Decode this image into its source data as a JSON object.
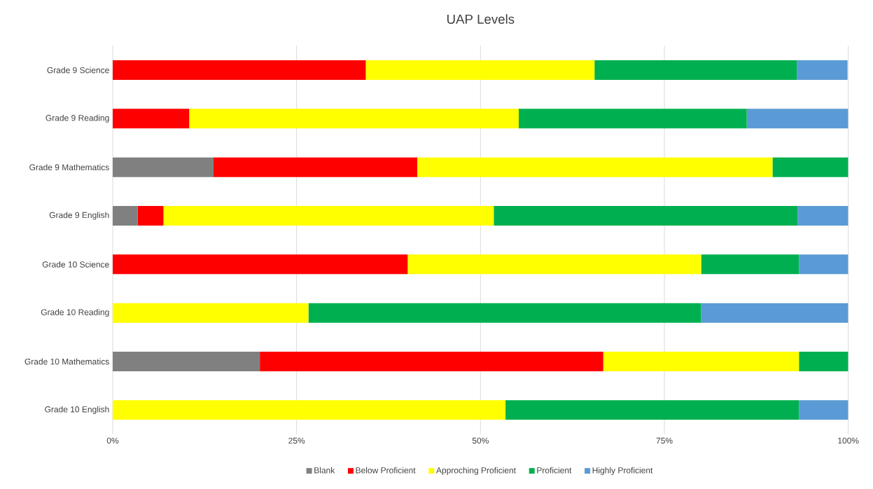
{
  "chart_data": {
    "type": "bar",
    "orientation": "horizontal",
    "stacked": true,
    "title": "UAP Levels",
    "categories": [
      "Grade 9 Science",
      "Grade 9 Reading",
      "Grade 9 Mathematics",
      "Grade 9 English",
      "Grade 10 Science",
      "Grade 10 Reading",
      "Grade 10 Mathematics",
      "Grade 10 English"
    ],
    "series": [
      {
        "name": "Blank",
        "color": "#808080",
        "values": [
          0,
          0,
          13.7,
          3.4,
          0,
          0,
          20.0,
          0
        ]
      },
      {
        "name": "Below Proficient",
        "color": "#ff0000",
        "values": [
          34.4,
          10.4,
          27.7,
          3.5,
          40.1,
          0,
          46.7,
          0
        ]
      },
      {
        "name": "Approching Proficient",
        "color": "#ffff00",
        "values": [
          31.1,
          44.8,
          48.3,
          44.9,
          39.9,
          26.6,
          26.6,
          53.4
        ]
      },
      {
        "name": "Proficient",
        "color": "#00b050",
        "values": [
          27.5,
          31.0,
          10.3,
          41.3,
          13.3,
          53.4,
          6.7,
          39.9
        ]
      },
      {
        "name": "Highly Proficient",
        "color": "#5b9bd5",
        "values": [
          6.9,
          13.8,
          0,
          6.9,
          6.7,
          20.0,
          0,
          6.7
        ]
      }
    ],
    "xlim": [
      0,
      100
    ],
    "xticks": [
      {
        "value": 0,
        "label": "0%"
      },
      {
        "value": 25,
        "label": "25%"
      },
      {
        "value": 50,
        "label": "50%"
      },
      {
        "value": 75,
        "label": "75%"
      },
      {
        "value": 100,
        "label": "100%"
      }
    ],
    "grid": "x",
    "legend": "bottom"
  }
}
